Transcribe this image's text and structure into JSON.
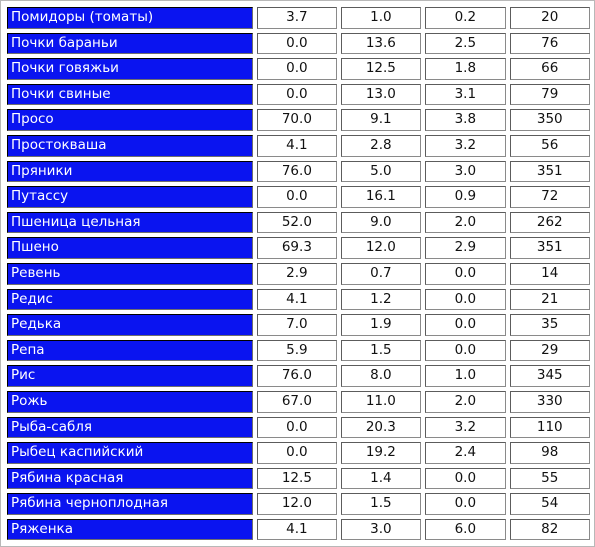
{
  "table": {
    "rows": [
      {
        "name": "Помидоры (томаты)",
        "values": [
          "3.7",
          "1.0",
          "0.2",
          "20"
        ]
      },
      {
        "name": "Почки бараньи",
        "values": [
          "0.0",
          "13.6",
          "2.5",
          "76"
        ]
      },
      {
        "name": "Почки говяжьи",
        "values": [
          "0.0",
          "12.5",
          "1.8",
          "66"
        ]
      },
      {
        "name": "Почки свиные",
        "values": [
          "0.0",
          "13.0",
          "3.1",
          "79"
        ]
      },
      {
        "name": "Просо",
        "values": [
          "70.0",
          "9.1",
          "3.8",
          "350"
        ]
      },
      {
        "name": "Простокваша",
        "values": [
          "4.1",
          "2.8",
          "3.2",
          "56"
        ]
      },
      {
        "name": "Пряники",
        "values": [
          "76.0",
          "5.0",
          "3.0",
          "351"
        ]
      },
      {
        "name": "Путассу",
        "values": [
          "0.0",
          "16.1",
          "0.9",
          "72"
        ]
      },
      {
        "name": "Пшеница цельная",
        "values": [
          "52.0",
          "9.0",
          "2.0",
          "262"
        ]
      },
      {
        "name": "Пшено",
        "values": [
          "69.3",
          "12.0",
          "2.9",
          "351"
        ]
      },
      {
        "name": "Ревень",
        "values": [
          "2.9",
          "0.7",
          "0.0",
          "14"
        ]
      },
      {
        "name": "Редис",
        "values": [
          "4.1",
          "1.2",
          "0.0",
          "21"
        ]
      },
      {
        "name": "Редька",
        "values": [
          "7.0",
          "1.9",
          "0.0",
          "35"
        ]
      },
      {
        "name": "Репа",
        "values": [
          "5.9",
          "1.5",
          "0.0",
          "29"
        ]
      },
      {
        "name": "Рис",
        "values": [
          "76.0",
          "8.0",
          "1.0",
          "345"
        ]
      },
      {
        "name": "Рожь",
        "values": [
          "67.0",
          "11.0",
          "2.0",
          "330"
        ]
      },
      {
        "name": "Рыба-сабля",
        "values": [
          "0.0",
          "20.3",
          "3.2",
          "110"
        ]
      },
      {
        "name": "Рыбец каспийский",
        "values": [
          "0.0",
          "19.2",
          "2.4",
          "98"
        ]
      },
      {
        "name": "Рябина красная",
        "values": [
          "12.5",
          "1.4",
          "0.0",
          "55"
        ]
      },
      {
        "name": "Рябина черноплодная",
        "values": [
          "12.0",
          "1.5",
          "0.0",
          "54"
        ]
      },
      {
        "name": "Ряженка",
        "values": [
          "4.1",
          "3.0",
          "6.0",
          "82"
        ]
      }
    ]
  },
  "colors": {
    "name_cell_background": "#0a14f0",
    "name_cell_text": "#ffffff",
    "value_cell_background": "#ffffff",
    "value_cell_text": "#111111"
  }
}
